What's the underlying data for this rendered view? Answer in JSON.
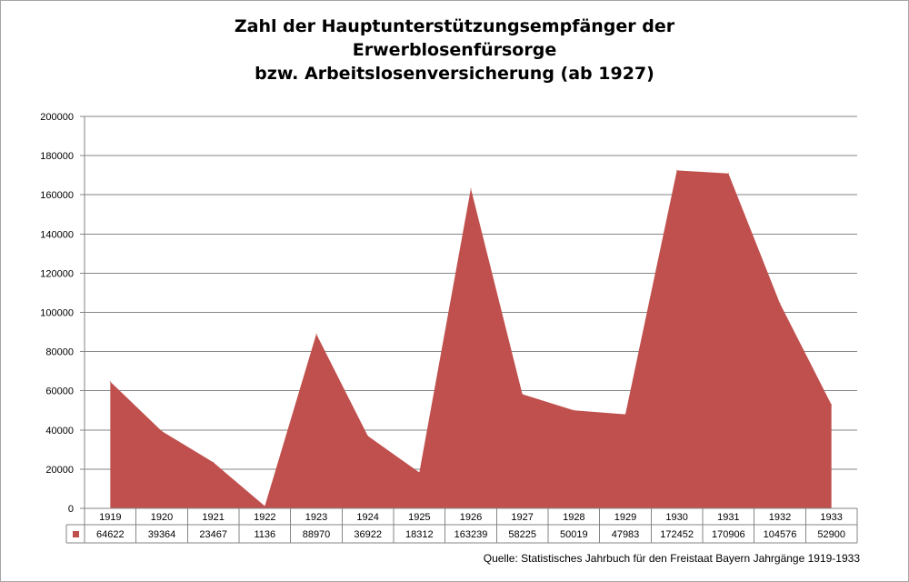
{
  "title_lines": [
    "Zahl der Hauptunterstützungsempfänger der",
    "Erwerblosenfürsorge",
    "bzw. Arbeitslosenversicherung (ab 1927)"
  ],
  "source": "Quelle: Statistisches Jahrbuch für den Freistaat Bayern Jahrgänge 1919-1933",
  "colors": {
    "area": "#c0504d",
    "grid": "#868686",
    "border": "#a6a6a6"
  },
  "chart_data": {
    "type": "area",
    "title": "Zahl der Hauptunterstützungsempfänger der Erwerblosenfürsorge bzw. Arbeitslosenversicherung (ab 1927)",
    "categories": [
      "1919",
      "1920",
      "1921",
      "1922",
      "1923",
      "1924",
      "1925",
      "1926",
      "1927",
      "1928",
      "1929",
      "1930",
      "1931",
      "1932",
      "1933"
    ],
    "values": [
      64622,
      39364,
      23467,
      1136,
      88970,
      36922,
      18312,
      163239,
      58225,
      50019,
      47983,
      172452,
      170906,
      104576,
      52900
    ],
    "ylim": [
      0,
      200000
    ],
    "yticks": [
      "0",
      "20000",
      "40000",
      "60000",
      "80000",
      "100000",
      "120000",
      "140000",
      "160000",
      "180000",
      "200000"
    ],
    "grid": true,
    "legend": "data table with color key",
    "data_table_values": [
      "64622",
      "39364",
      "23467",
      "1136",
      "88970",
      "36922",
      "18312",
      "163239",
      "58225",
      "50019",
      "47983",
      "172452",
      "170906",
      "104576",
      "52900"
    ]
  }
}
